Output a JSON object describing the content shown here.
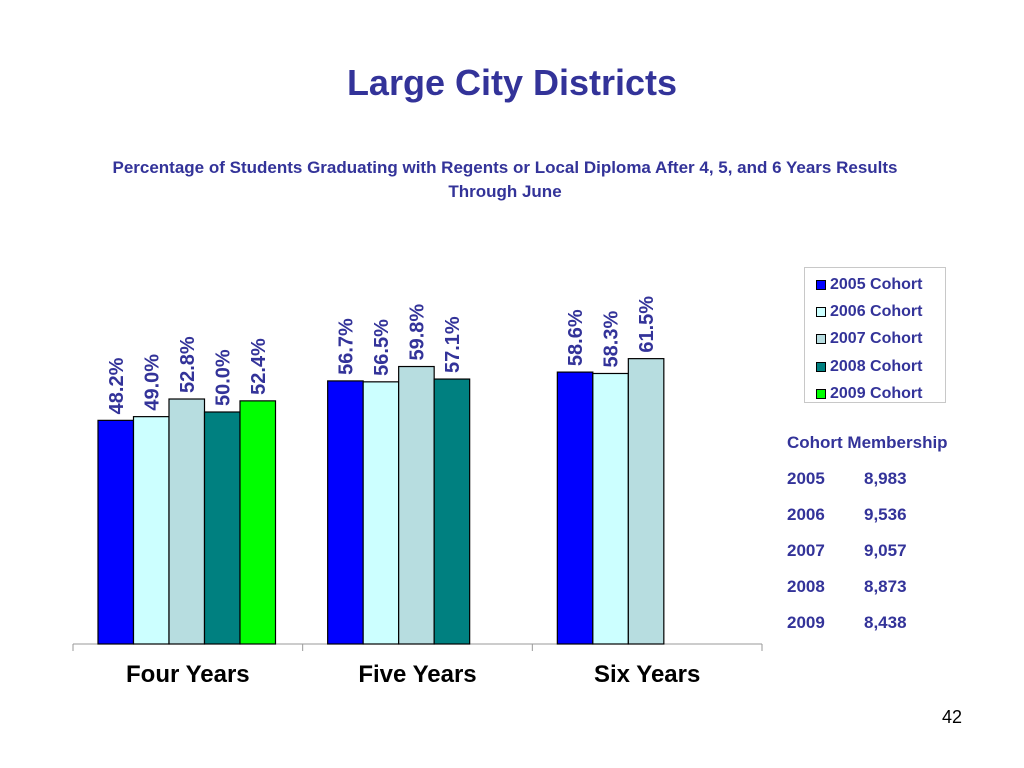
{
  "slide": {
    "title": "Large City Districts",
    "subtitle": "Percentage of Students Graduating with Regents or Local Diploma After 4, 5, and 6 Years Results Through June",
    "page_number": "42"
  },
  "colors": {
    "text": "#333399",
    "axis": "#999999"
  },
  "chart_data": {
    "type": "bar",
    "title": "Percentage of Students Graduating with Regents or Local Diploma After 4, 5, and 6 Years Results Through June",
    "categories": [
      "Four Years",
      "Five Years",
      "Six Years"
    ],
    "ylim": [
      0,
      100
    ],
    "ylabel": "",
    "xlabel": "",
    "grid": false,
    "legend_position": "top-right",
    "series": [
      {
        "name": "2005 Cohort",
        "color": "#0000ff",
        "values": [
          48.2,
          56.7,
          58.6
        ],
        "labels": [
          "48.2%",
          "56.7%",
          "58.6%"
        ]
      },
      {
        "name": "2006 Cohort",
        "color": "#ccffff",
        "values": [
          49.0,
          56.5,
          58.3
        ],
        "labels": [
          "49.0%",
          "56.5%",
          "58.3%"
        ]
      },
      {
        "name": "2007 Cohort",
        "color": "#b7dde0",
        "values": [
          52.8,
          59.8,
          61.5
        ],
        "labels": [
          "52.8%",
          "59.8%",
          "61.5%"
        ]
      },
      {
        "name": "2008 Cohort",
        "color": "#008080",
        "values": [
          50.0,
          57.1,
          null
        ],
        "labels": [
          "50.0%",
          "57.1%",
          null
        ]
      },
      {
        "name": "2009 Cohort",
        "color": "#00ff00",
        "values": [
          52.4,
          null,
          null
        ],
        "labels": [
          "52.4%",
          null,
          null
        ]
      }
    ]
  },
  "cohort_membership": {
    "title": "Cohort Membership",
    "rows": [
      {
        "year": "2005",
        "count": "8,983"
      },
      {
        "year": "2006",
        "count": "9,536"
      },
      {
        "year": "2007",
        "count": "9,057"
      },
      {
        "year": "2008",
        "count": "8,873"
      },
      {
        "year": "2009",
        "count": "8,438"
      }
    ]
  }
}
